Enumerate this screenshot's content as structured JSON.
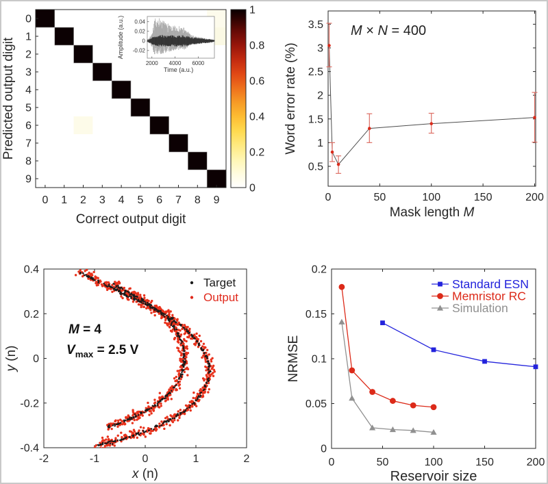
{
  "figure": {
    "background": "#ffffff",
    "frame_border": "#c9c9c9",
    "axis_color": "#262626",
    "tick_label_color": "#262626"
  },
  "chart_data": [
    {
      "id": "confusion_matrix",
      "type": "heatmap",
      "xlabel": "Correct output digit",
      "ylabel": "Predicted output digit",
      "xticks": [
        "0",
        "1",
        "2",
        "3",
        "4",
        "5",
        "6",
        "7",
        "8",
        "9"
      ],
      "yticks": [
        "0",
        "1",
        "2",
        "3",
        "4",
        "5",
        "6",
        "7",
        "8",
        "9"
      ],
      "diagonal_value": 1,
      "diagonal_color": "#0c0103",
      "cell_edge_color": "#9a9a9a",
      "off_diagonal_cells": [
        {
          "correct": 2,
          "predicted": 6,
          "value": 0.03,
          "color": "#fdfbe9"
        },
        {
          "correct": 9,
          "predicted": 0,
          "value": 0.02,
          "color": "#fdfbec"
        },
        {
          "correct": 9,
          "predicted": 1,
          "value": 0.02,
          "color": "#fbf9e4"
        }
      ],
      "colorbar": {
        "ticks": [
          "0",
          "0.2",
          "0.4",
          "0.6",
          "0.8",
          "1"
        ],
        "tick_values": [
          0,
          0.2,
          0.4,
          0.6,
          0.8,
          1
        ],
        "gradient_bottom_to_top": [
          {
            "at": 0.0,
            "color": "#ffffff"
          },
          {
            "at": 0.07,
            "color": "#fffce3"
          },
          {
            "at": 0.15,
            "color": "#fff7b8"
          },
          {
            "at": 0.24,
            "color": "#ffe97f"
          },
          {
            "at": 0.32,
            "color": "#ffd94e"
          },
          {
            "at": 0.4,
            "color": "#fdbc32"
          },
          {
            "at": 0.48,
            "color": "#f69a26"
          },
          {
            "at": 0.56,
            "color": "#ee701c"
          },
          {
            "at": 0.64,
            "color": "#e04715"
          },
          {
            "at": 0.72,
            "color": "#c22a10"
          },
          {
            "at": 0.8,
            "color": "#97150b"
          },
          {
            "at": 0.88,
            "color": "#650a06"
          },
          {
            "at": 0.95,
            "color": "#2d0302"
          },
          {
            "at": 1.0,
            "color": "#0a0000"
          }
        ]
      },
      "inset": {
        "xlabel": "Time (a.u.)",
        "ylabel": "Amplitude (a.u.)",
        "xticks": [
          "2000",
          "4000",
          "6000"
        ],
        "xtick_values": [
          2000,
          4000,
          6000
        ],
        "yticks": [
          "0.04",
          "0.02",
          "0",
          "-0.02"
        ],
        "ytick_values": [
          0.04,
          0.02,
          0,
          -0.02
        ],
        "xlim": [
          1600,
          7400
        ],
        "ylim": [
          -0.036,
          0.051
        ],
        "waveform_color_outer": "#a6a6a6",
        "waveform_color_inner": "#303030",
        "envelope_upper": [
          [
            1600,
            0.003
          ],
          [
            1750,
            0.006
          ],
          [
            1900,
            0.013
          ],
          [
            2050,
            0.024
          ],
          [
            2150,
            0.04
          ],
          [
            2250,
            0.049
          ],
          [
            2400,
            0.051
          ],
          [
            2550,
            0.046
          ],
          [
            2700,
            0.05
          ],
          [
            2850,
            0.044
          ],
          [
            3000,
            0.042
          ],
          [
            3200,
            0.04
          ],
          [
            3400,
            0.037
          ],
          [
            3600,
            0.035
          ],
          [
            3800,
            0.033
          ],
          [
            4000,
            0.032
          ],
          [
            4200,
            0.033
          ],
          [
            4400,
            0.03
          ],
          [
            4600,
            0.028
          ],
          [
            4800,
            0.03
          ],
          [
            5000,
            0.024
          ],
          [
            5200,
            0.018
          ],
          [
            5400,
            0.014
          ],
          [
            5600,
            0.011
          ],
          [
            5900,
            0.009
          ],
          [
            6200,
            0.0075
          ],
          [
            6500,
            0.006
          ],
          [
            6800,
            0.005
          ],
          [
            7100,
            0.004
          ],
          [
            7400,
            0.002
          ]
        ],
        "envelope_inner": [
          [
            1600,
            0.002
          ],
          [
            1900,
            0.006
          ],
          [
            2200,
            0.01
          ],
          [
            2500,
            0.012
          ],
          [
            3000,
            0.0125
          ],
          [
            3600,
            0.012
          ],
          [
            4200,
            0.012
          ],
          [
            4800,
            0.0125
          ],
          [
            5100,
            0.01
          ],
          [
            5400,
            0.0085
          ],
          [
            5800,
            0.007
          ],
          [
            6200,
            0.006
          ],
          [
            6600,
            0.005
          ],
          [
            7000,
            0.0042
          ],
          [
            7400,
            0.002
          ]
        ]
      }
    },
    {
      "id": "word_error_rate",
      "type": "line",
      "annotation_parts": [
        {
          "t": "M",
          "italic": true
        },
        {
          "t": " × "
        },
        {
          "t": "N",
          "italic": true
        },
        {
          "t": " = 400"
        }
      ],
      "xlabel_parts": [
        {
          "t": "Mask length "
        },
        {
          "t": "M",
          "italic": true
        }
      ],
      "ylabel": "Word error rate (%)",
      "xticks": [
        "0",
        "50",
        "100",
        "150",
        "200"
      ],
      "xtick_values": [
        0,
        50,
        100,
        150,
        200
      ],
      "yticks": [
        "0.5",
        "1",
        "1.5",
        "2",
        "2.5",
        "3",
        "3.5"
      ],
      "ytick_values": [
        0.5,
        1,
        1.5,
        2,
        2.5,
        3,
        3.5
      ],
      "xlim": [
        0,
        201
      ],
      "ylim": [
        0.08,
        3.78
      ],
      "line_color": "#4d4d4d",
      "marker_color": "#d92a1a",
      "errorbar_color": "#dd6e64",
      "points": [
        {
          "x": 1,
          "y": 3.05,
          "lo": 2.6,
          "hi": 3.52
        },
        {
          "x": 4,
          "y": 0.8,
          "lo": 0.6,
          "hi": 1.0
        },
        {
          "x": 10,
          "y": 0.54,
          "lo": 0.35,
          "hi": 0.72
        },
        {
          "x": 40,
          "y": 1.3,
          "lo": 1.0,
          "hi": 1.61
        },
        {
          "x": 100,
          "y": 1.4,
          "lo": 1.2,
          "hi": 1.62
        },
        {
          "x": 200,
          "y": 1.53,
          "lo": 1.01,
          "hi": 2.06
        }
      ]
    },
    {
      "id": "phase_portrait",
      "type": "scatter",
      "xlabel_parts": [
        {
          "t": "x",
          "italic": true
        },
        {
          "t": " (n)"
        }
      ],
      "ylabel_parts": [
        {
          "t": "y",
          "italic": true
        },
        {
          "t": " (n)"
        }
      ],
      "xticks": [
        "-2",
        "-1",
        "0",
        "1",
        "2"
      ],
      "xtick_values": [
        -2,
        -1,
        0,
        1,
        2
      ],
      "yticks": [
        "0.4",
        "0.2",
        "0",
        "-0.2",
        "-0.4"
      ],
      "ytick_values": [
        0.4,
        0.2,
        0,
        -0.2,
        -0.4
      ],
      "xlim": [
        -2,
        2
      ],
      "ylim": [
        -0.4,
        0.4
      ],
      "annotation_line1": [
        {
          "t": "M",
          "italic": true,
          "bold": true
        },
        {
          "t": " = 4",
          "bold": true
        }
      ],
      "annotation_line2": [
        {
          "t": "V",
          "italic": true,
          "bold": true
        },
        {
          "t": "max",
          "bold": true,
          "sub": true
        },
        {
          "t": " = 2.5 V",
          "bold": true
        }
      ],
      "legend": [
        {
          "label": "Target",
          "color": "#1a1a1a"
        },
        {
          "label": "Output",
          "color": "#e0291c"
        }
      ],
      "series": [
        {
          "name": "Target",
          "color": "#1a1a1a",
          "dot_radius": 1.25,
          "jitter_x": 0.012,
          "jitter_y": 0.003,
          "n_outer": 320,
          "n_inner": 230,
          "seed": 11
        },
        {
          "name": "Output",
          "color": "#e8321c",
          "dot_radius": 1.7,
          "jitter_x": 0.045,
          "jitter_y": 0.011,
          "n_outer": 600,
          "n_inner": 430,
          "seed": 42
        }
      ],
      "curve_outer": [
        [
          -1.3,
          0.385
        ],
        [
          -1.05,
          0.358
        ],
        [
          -0.8,
          0.332
        ],
        [
          -0.55,
          0.304
        ],
        [
          -0.3,
          0.276
        ],
        [
          -0.05,
          0.248
        ],
        [
          0.2,
          0.22
        ],
        [
          0.42,
          0.192
        ],
        [
          0.62,
          0.162
        ],
        [
          0.82,
          0.126
        ],
        [
          1.0,
          0.084
        ],
        [
          1.14,
          0.038
        ],
        [
          1.23,
          -0.008
        ],
        [
          1.27,
          -0.05
        ],
        [
          1.24,
          -0.098
        ],
        [
          1.14,
          -0.148
        ],
        [
          0.99,
          -0.194
        ],
        [
          0.79,
          -0.234
        ],
        [
          0.54,
          -0.269
        ],
        [
          0.27,
          -0.3
        ],
        [
          -0.02,
          -0.327
        ],
        [
          -0.32,
          -0.351
        ],
        [
          -0.62,
          -0.371
        ],
        [
          -0.95,
          -0.39
        ]
      ],
      "curve_inner": [
        [
          -0.62,
          0.33
        ],
        [
          -0.38,
          0.302
        ],
        [
          -0.14,
          0.272
        ],
        [
          0.1,
          0.24
        ],
        [
          0.3,
          0.206
        ],
        [
          0.48,
          0.168
        ],
        [
          0.62,
          0.124
        ],
        [
          0.72,
          0.076
        ],
        [
          0.77,
          0.028
        ],
        [
          0.77,
          -0.018
        ],
        [
          0.72,
          -0.068
        ],
        [
          0.62,
          -0.114
        ],
        [
          0.47,
          -0.157
        ],
        [
          0.27,
          -0.197
        ],
        [
          0.04,
          -0.232
        ],
        [
          -0.22,
          -0.262
        ],
        [
          -0.49,
          -0.288
        ],
        [
          -0.76,
          -0.308
        ]
      ]
    },
    {
      "id": "nrmse_vs_reservoir_size",
      "type": "line",
      "xlabel": "Reservoir size",
      "ylabel": "NRMSE",
      "xticks": [
        "0",
        "50",
        "100",
        "150",
        "200"
      ],
      "xtick_values": [
        0,
        50,
        100,
        150,
        200
      ],
      "yticks": [
        "0",
        "0.05",
        "0.1",
        "0.15",
        "0.2"
      ],
      "ytick_values": [
        0,
        0.05,
        0.1,
        0.15,
        0.2
      ],
      "xlim": [
        0,
        200
      ],
      "ylim": [
        0,
        0.2
      ],
      "legend_position": "top-right",
      "series": [
        {
          "name": "Standard ESN",
          "color": "#2323dc",
          "marker": "square",
          "x": [
            50,
            100,
            150,
            200
          ],
          "y": [
            0.14,
            0.11,
            0.097,
            0.091
          ]
        },
        {
          "name": "Memristor RC",
          "color": "#dc2a19",
          "marker": "circle",
          "x": [
            10,
            20,
            40,
            60,
            80,
            100
          ],
          "y": [
            0.18,
            0.087,
            0.063,
            0.053,
            0.048,
            0.046
          ]
        },
        {
          "name": "Simulation",
          "color": "#909090",
          "marker": "triangle",
          "x": [
            10,
            20,
            40,
            60,
            80,
            100
          ],
          "y": [
            0.141,
            0.056,
            0.023,
            0.021,
            0.02,
            0.018
          ]
        }
      ]
    }
  ]
}
